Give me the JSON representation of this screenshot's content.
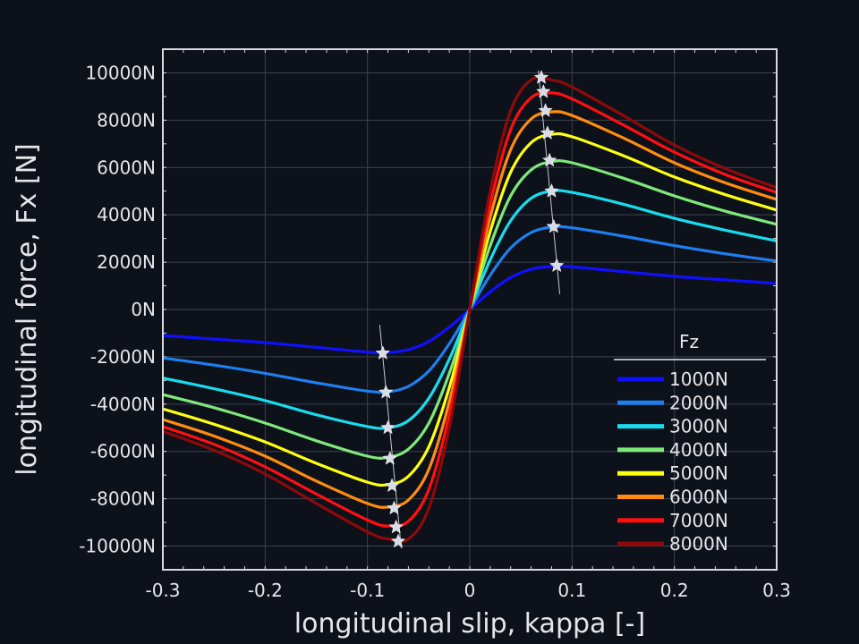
{
  "chart_data": {
    "type": "line",
    "title": "",
    "xlabel": "longitudinal slip, kappa [-]",
    "ylabel": "longitudinal force, Fx [N]",
    "xlim": [
      -0.3,
      0.3
    ],
    "ylim": [
      -11000,
      11000
    ],
    "grid": true,
    "x_ticks": [
      -0.3,
      -0.2,
      -0.1,
      0,
      0.1,
      0.2,
      0.3
    ],
    "x_tick_labels": [
      "-0.3",
      "-0.2",
      "-0.1",
      "0",
      "0.1",
      "0.2",
      "0.3"
    ],
    "y_ticks": [
      -10000,
      -8000,
      -6000,
      -4000,
      -2000,
      0,
      2000,
      4000,
      6000,
      8000,
      10000
    ],
    "y_tick_labels": [
      "-10000N",
      "-8000N",
      "-6000N",
      "-4000N",
      "-2000N",
      "0N",
      "2000N",
      "4000N",
      "6000N",
      "8000N",
      "10000N"
    ],
    "legend": {
      "title": "Fz",
      "placement": "bottom-right"
    },
    "peak_marker": "star",
    "x": [
      -0.3,
      -0.25,
      -0.2,
      -0.15,
      -0.1,
      -0.08,
      -0.06,
      -0.04,
      -0.02,
      0,
      0.02,
      0.04,
      0.06,
      0.08,
      0.1,
      0.15,
      0.2,
      0.25,
      0.3
    ],
    "series": [
      {
        "name": "1000N",
        "color": "#1010ff",
        "values": [
          -1100,
          -1250,
          -1400,
          -1600,
          -1800,
          -1820,
          -1700,
          -1350,
          -750,
          0,
          750,
          1350,
          1700,
          1820,
          1800,
          1600,
          1400,
          1250,
          1100
        ],
        "peak": [
          0.085,
          1850
        ]
      },
      {
        "name": "2000N",
        "color": "#1e7ff0",
        "values": [
          -2050,
          -2350,
          -2700,
          -3100,
          -3450,
          -3480,
          -3250,
          -2600,
          -1450,
          0,
          1450,
          2600,
          3250,
          3480,
          3450,
          3100,
          2700,
          2350,
          2050
        ],
        "peak": [
          0.082,
          3500
        ]
      },
      {
        "name": "3000N",
        "color": "#18dcee",
        "values": [
          -2900,
          -3350,
          -3850,
          -4450,
          -4950,
          -5000,
          -4700,
          -3750,
          -2100,
          0,
          2100,
          3750,
          4700,
          5000,
          4950,
          4450,
          3850,
          3350,
          2900
        ],
        "peak": [
          0.08,
          5000
        ]
      },
      {
        "name": "4000N",
        "color": "#7ee87a",
        "values": [
          -3600,
          -4150,
          -4800,
          -5550,
          -6200,
          -6250,
          -5900,
          -4800,
          -2700,
          0,
          2700,
          4800,
          5900,
          6250,
          6200,
          5550,
          4800,
          4150,
          3600
        ],
        "peak": [
          0.078,
          6300
        ]
      },
      {
        "name": "5000N",
        "color": "#ffff10",
        "values": [
          -4200,
          -4850,
          -5600,
          -6500,
          -7300,
          -7400,
          -7050,
          -5800,
          -3300,
          0,
          3300,
          5800,
          7050,
          7400,
          7300,
          6500,
          5600,
          4850,
          4200
        ],
        "peak": [
          0.076,
          7450
        ]
      },
      {
        "name": "6000N",
        "color": "#ff8c10",
        "values": [
          -4650,
          -5350,
          -6200,
          -7250,
          -8200,
          -8350,
          -8050,
          -6750,
          -3900,
          0,
          3900,
          6750,
          8050,
          8350,
          8200,
          7250,
          6200,
          5350,
          4650
        ],
        "peak": [
          0.074,
          8400
        ]
      },
      {
        "name": "7000N",
        "color": "#ff1010",
        "values": [
          -4950,
          -5700,
          -6650,
          -7800,
          -8900,
          -9150,
          -8950,
          -7600,
          -4450,
          0,
          4450,
          7600,
          8950,
          9150,
          8900,
          7800,
          6650,
          5700,
          4950
        ],
        "peak": [
          0.072,
          9200
        ]
      },
      {
        "name": "8000N",
        "color": "#8e0a0a",
        "values": [
          -5150,
          -5950,
          -6950,
          -8200,
          -9400,
          -9700,
          -9700,
          -8400,
          -5000,
          0,
          5000,
          8400,
          9700,
          9700,
          9400,
          8200,
          6950,
          5950,
          5150
        ],
        "peak": [
          0.07,
          9800
        ]
      }
    ]
  }
}
